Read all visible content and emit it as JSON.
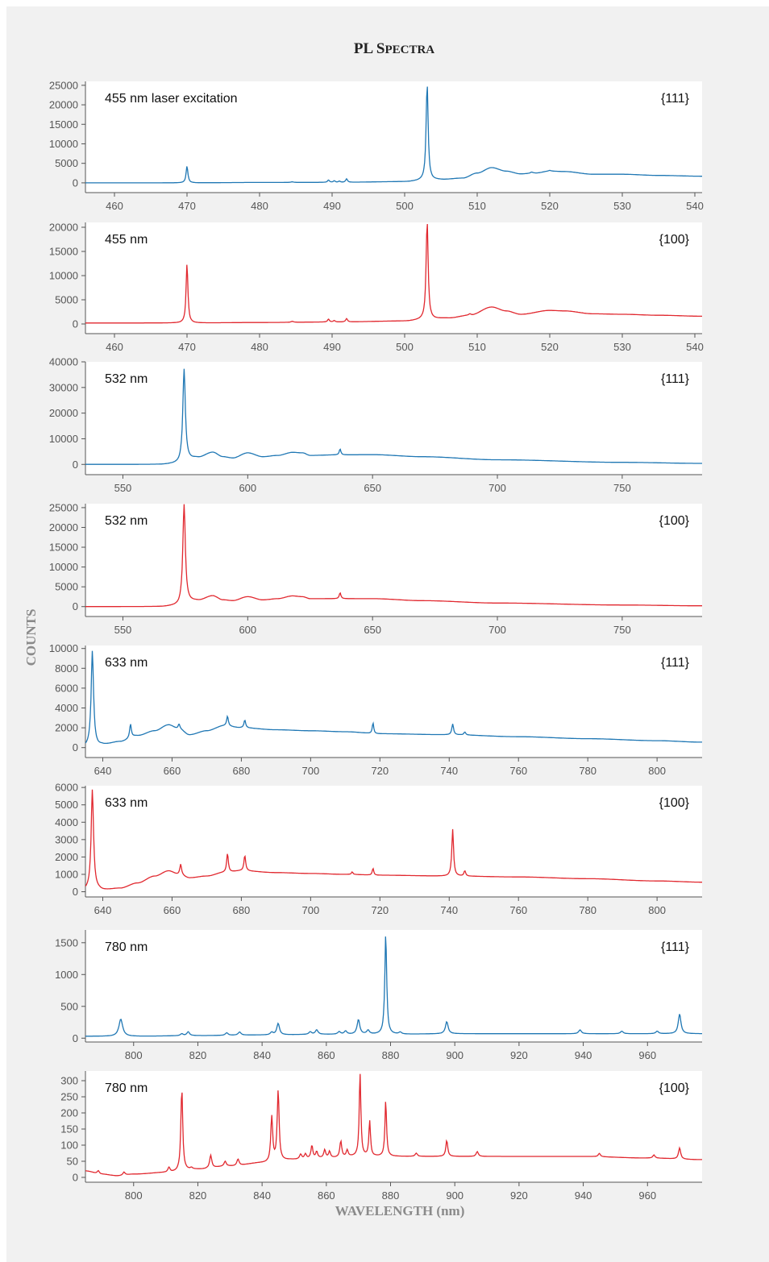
{
  "chart_data": {
    "type": "line",
    "title": "PL Spectra",
    "xlabel": "WAVELENGTH (nm)",
    "ylabel": "COUNTS",
    "grid": false,
    "colors": {
      "111": "#1f77b4",
      "100": "#e1282f"
    },
    "panels": [
      {
        "label": "455 nm laser excitation",
        "face": "{111}",
        "color": "#1f77b4",
        "xlim": [
          456,
          541
        ],
        "ylim": [
          -2500,
          26000
        ],
        "xticks": [
          460,
          470,
          480,
          490,
          500,
          510,
          520,
          530,
          540
        ],
        "yticks": [
          0,
          5000,
          10000,
          15000,
          20000,
          25000
        ],
        "baseline": [
          [
            456,
            0
          ],
          [
            470,
            0
          ],
          [
            480,
            100
          ],
          [
            490,
            120
          ],
          [
            500,
            300
          ],
          [
            503,
            600
          ],
          [
            505,
            800
          ],
          [
            508,
            1200
          ],
          [
            510,
            2500
          ],
          [
            512,
            3900
          ],
          [
            514,
            3000
          ],
          [
            516,
            2300
          ],
          [
            518,
            2500
          ],
          [
            520,
            3000
          ],
          [
            522,
            2900
          ],
          [
            526,
            2200
          ],
          [
            530,
            2200
          ],
          [
            535,
            1900
          ],
          [
            541,
            1700
          ]
        ],
        "peaks": [
          [
            470,
            4300,
            0.15
          ],
          [
            484.5,
            150,
            0.2
          ],
          [
            489.5,
            600,
            0.15
          ],
          [
            490.3,
            400,
            0.15
          ],
          [
            491,
            300,
            0.15
          ],
          [
            492,
            900,
            0.15
          ],
          [
            503.1,
            24700,
            0.17
          ],
          [
            517.5,
            300,
            0.2
          ],
          [
            520,
            200,
            0.2
          ]
        ]
      },
      {
        "label": "455 nm",
        "face": "{100}",
        "color": "#e1282f",
        "xlim": [
          456,
          541
        ],
        "ylim": [
          -2000,
          21000
        ],
        "xticks": [
          460,
          470,
          480,
          490,
          500,
          510,
          520,
          530,
          540
        ],
        "yticks": [
          0,
          5000,
          10000,
          15000,
          20000
        ],
        "baseline": [
          [
            456,
            200
          ],
          [
            470,
            200
          ],
          [
            480,
            300
          ],
          [
            490,
            400
          ],
          [
            500,
            600
          ],
          [
            503,
            900
          ],
          [
            506,
            1200
          ],
          [
            509,
            1800
          ],
          [
            512,
            3500
          ],
          [
            514,
            2700
          ],
          [
            516,
            2000
          ],
          [
            520,
            2800
          ],
          [
            522,
            2700
          ],
          [
            526,
            2100
          ],
          [
            530,
            2000
          ],
          [
            535,
            1800
          ],
          [
            541,
            1600
          ]
        ],
        "peaks": [
          [
            470,
            12300,
            0.15
          ],
          [
            484.5,
            200,
            0.2
          ],
          [
            489.5,
            600,
            0.15
          ],
          [
            490.3,
            300,
            0.15
          ],
          [
            492,
            700,
            0.15
          ],
          [
            503.1,
            20300,
            0.17
          ],
          [
            509,
            300,
            0.2
          ]
        ]
      },
      {
        "label": "532 nm",
        "face": "{111}",
        "color": "#1f77b4",
        "xlim": [
          535,
          782
        ],
        "ylim": [
          -4000,
          40000
        ],
        "xticks": [
          550,
          600,
          650,
          700,
          750
        ],
        "yticks": [
          0,
          10000,
          20000,
          30000,
          40000
        ],
        "baseline": [
          [
            535,
            0
          ],
          [
            565,
            0
          ],
          [
            572,
            300
          ],
          [
            576,
            1800
          ],
          [
            580,
            2600
          ],
          [
            586,
            4700
          ],
          [
            590,
            3000
          ],
          [
            594,
            2500
          ],
          [
            600,
            4500
          ],
          [
            606,
            3000
          ],
          [
            612,
            3500
          ],
          [
            618,
            4700
          ],
          [
            622,
            4500
          ],
          [
            625,
            3500
          ],
          [
            635,
            3700
          ],
          [
            650,
            3800
          ],
          [
            670,
            3000
          ],
          [
            700,
            1800
          ],
          [
            750,
            800
          ],
          [
            782,
            400
          ]
        ],
        "peaks": [
          [
            574.5,
            36000,
            0.6
          ],
          [
            637,
            2300,
            0.4
          ]
        ]
      },
      {
        "label": "532 nm",
        "face": "{100}",
        "color": "#e1282f",
        "xlim": [
          535,
          782
        ],
        "ylim": [
          -2500,
          26000
        ],
        "xticks": [
          550,
          600,
          650,
          700,
          750
        ],
        "yticks": [
          0,
          5000,
          10000,
          15000,
          20000,
          25000
        ],
        "baseline": [
          [
            535,
            0
          ],
          [
            565,
            0
          ],
          [
            572,
            200
          ],
          [
            576,
            1200
          ],
          [
            580,
            1500
          ],
          [
            586,
            2700
          ],
          [
            590,
            1700
          ],
          [
            594,
            1500
          ],
          [
            600,
            2500
          ],
          [
            606,
            1700
          ],
          [
            612,
            2000
          ],
          [
            618,
            2700
          ],
          [
            622,
            2500
          ],
          [
            625,
            2000
          ],
          [
            635,
            2000
          ],
          [
            650,
            2000
          ],
          [
            670,
            1500
          ],
          [
            700,
            900
          ],
          [
            750,
            400
          ],
          [
            782,
            200
          ]
        ],
        "peaks": [
          [
            574.5,
            25000,
            0.6
          ],
          [
            637,
            1500,
            0.4
          ]
        ]
      },
      {
        "label": "633 nm",
        "face": "{111}",
        "color": "#1f77b4",
        "xlim": [
          635,
          813
        ],
        "ylim": [
          -1000,
          10300
        ],
        "xticks": [
          640,
          660,
          680,
          700,
          720,
          740,
          760,
          780,
          800
        ],
        "yticks": [
          0,
          2000,
          4000,
          6000,
          8000,
          10000
        ],
        "baseline": [
          [
            635,
            100
          ],
          [
            636.5,
            300
          ],
          [
            638.5,
            200
          ],
          [
            640,
            300
          ],
          [
            645,
            600
          ],
          [
            650,
            1200
          ],
          [
            655,
            1700
          ],
          [
            659,
            2300
          ],
          [
            662,
            1900
          ],
          [
            665,
            1300
          ],
          [
            670,
            1700
          ],
          [
            675,
            2200
          ],
          [
            680,
            2000
          ],
          [
            690,
            1800
          ],
          [
            700,
            1700
          ],
          [
            710,
            1600
          ],
          [
            720,
            1400
          ],
          [
            740,
            1300
          ],
          [
            760,
            1100
          ],
          [
            780,
            900
          ],
          [
            800,
            700
          ],
          [
            813,
            550
          ]
        ],
        "peaks": [
          [
            637,
            9500,
            0.4
          ],
          [
            648,
            1400,
            0.3
          ],
          [
            662,
            500,
            0.3
          ],
          [
            676,
            1000,
            0.3
          ],
          [
            681,
            800,
            0.3
          ],
          [
            718,
            1100,
            0.25
          ],
          [
            741,
            1100,
            0.3
          ],
          [
            744.5,
            300,
            0.3
          ]
        ]
      },
      {
        "label": "633 nm",
        "face": "{100}",
        "color": "#e1282f",
        "xlim": [
          635,
          813
        ],
        "ylim": [
          -300,
          6100
        ],
        "xticks": [
          640,
          660,
          680,
          700,
          720,
          740,
          760,
          780,
          800
        ],
        "yticks": [
          0,
          1000,
          2000,
          3000,
          4000,
          5000,
          6000
        ],
        "baseline": [
          [
            635,
            100
          ],
          [
            636.5,
            200
          ],
          [
            638.5,
            150
          ],
          [
            640,
            100
          ],
          [
            645,
            200
          ],
          [
            650,
            500
          ],
          [
            655,
            900
          ],
          [
            659,
            1200
          ],
          [
            662,
            1000
          ],
          [
            665,
            800
          ],
          [
            670,
            900
          ],
          [
            675,
            1100
          ],
          [
            680,
            1200
          ],
          [
            690,
            1100
          ],
          [
            700,
            1050
          ],
          [
            710,
            1000
          ],
          [
            720,
            950
          ],
          [
            740,
            900
          ],
          [
            760,
            850
          ],
          [
            780,
            750
          ],
          [
            800,
            620
          ],
          [
            813,
            550
          ]
        ],
        "peaks": [
          [
            637,
            5700,
            0.4
          ],
          [
            662.5,
            600,
            0.3
          ],
          [
            676,
            1100,
            0.3
          ],
          [
            681,
            900,
            0.3
          ],
          [
            712,
            150,
            0.25
          ],
          [
            718,
            400,
            0.25
          ],
          [
            741,
            2700,
            0.3
          ],
          [
            744.5,
            300,
            0.3
          ]
        ]
      },
      {
        "label": "780 nm",
        "face": "{111}",
        "color": "#1f77b4",
        "xlim": [
          785,
          977
        ],
        "ylim": [
          -60,
          1700
        ],
        "xticks": [
          800,
          820,
          840,
          860,
          880,
          900,
          920,
          940,
          960
        ],
        "yticks": [
          0,
          500,
          1000,
          1500
        ],
        "baseline": [
          [
            785,
            30
          ],
          [
            800,
            30
          ],
          [
            820,
            40
          ],
          [
            840,
            50
          ],
          [
            860,
            60
          ],
          [
            880,
            60
          ],
          [
            900,
            70
          ],
          [
            920,
            70
          ],
          [
            940,
            70
          ],
          [
            960,
            70
          ],
          [
            977,
            70
          ]
        ],
        "peaks": [
          [
            796,
            270,
            0.7
          ],
          [
            815,
            30,
            0.5
          ],
          [
            817,
            60,
            0.5
          ],
          [
            829,
            40,
            0.5
          ],
          [
            833,
            50,
            0.5
          ],
          [
            843,
            40,
            0.5
          ],
          [
            845,
            180,
            0.5
          ],
          [
            855,
            40,
            0.5
          ],
          [
            857,
            70,
            0.5
          ],
          [
            864,
            40,
            0.5
          ],
          [
            866,
            50,
            0.5
          ],
          [
            870,
            230,
            0.5
          ],
          [
            873,
            60,
            0.5
          ],
          [
            878.5,
            1580,
            0.35
          ],
          [
            883,
            30,
            0.5
          ],
          [
            897.5,
            190,
            0.5
          ],
          [
            939,
            60,
            0.5
          ],
          [
            952,
            40,
            0.5
          ],
          [
            963,
            40,
            0.5
          ],
          [
            970,
            310,
            0.5
          ]
        ]
      },
      {
        "label": "780 nm",
        "face": "{100}",
        "color": "#e1282f",
        "xlim": [
          785,
          977
        ],
        "ylim": [
          -15,
          330
        ],
        "xticks": [
          800,
          820,
          840,
          860,
          880,
          900,
          920,
          940,
          960
        ],
        "yticks": [
          0,
          50,
          100,
          150,
          200,
          250,
          300
        ],
        "baseline": [
          [
            785,
            20
          ],
          [
            790,
            10
          ],
          [
            795,
            5
          ],
          [
            800,
            10
          ],
          [
            810,
            15
          ],
          [
            820,
            25
          ],
          [
            830,
            35
          ],
          [
            840,
            45
          ],
          [
            850,
            55
          ],
          [
            860,
            60
          ],
          [
            870,
            65
          ],
          [
            880,
            65
          ],
          [
            890,
            65
          ],
          [
            900,
            65
          ],
          [
            920,
            65
          ],
          [
            940,
            65
          ],
          [
            960,
            60
          ],
          [
            977,
            55
          ]
        ],
        "peaks": [
          [
            789,
            10,
            0.4
          ],
          [
            797,
            10,
            0.4
          ],
          [
            811,
            15,
            0.4
          ],
          [
            815,
            255,
            0.35
          ],
          [
            818,
            5,
            0.4
          ],
          [
            824,
            40,
            0.4
          ],
          [
            828.5,
            15,
            0.4
          ],
          [
            832.5,
            20,
            0.4
          ],
          [
            843,
            140,
            0.35
          ],
          [
            845,
            220,
            0.35
          ],
          [
            852,
            15,
            0.4
          ],
          [
            853.5,
            15,
            0.4
          ],
          [
            855.5,
            40,
            0.35
          ],
          [
            857,
            20,
            0.35
          ],
          [
            859.5,
            25,
            0.35
          ],
          [
            861,
            20,
            0.35
          ],
          [
            864.5,
            50,
            0.35
          ],
          [
            866.5,
            20,
            0.35
          ],
          [
            870.5,
            260,
            0.3
          ],
          [
            873.5,
            110,
            0.3
          ],
          [
            878.5,
            175,
            0.3
          ],
          [
            888,
            10,
            0.4
          ],
          [
            897.5,
            50,
            0.35
          ],
          [
            907,
            15,
            0.4
          ],
          [
            945,
            10,
            0.4
          ],
          [
            962,
            10,
            0.4
          ],
          [
            970,
            35,
            0.4
          ]
        ]
      }
    ]
  }
}
